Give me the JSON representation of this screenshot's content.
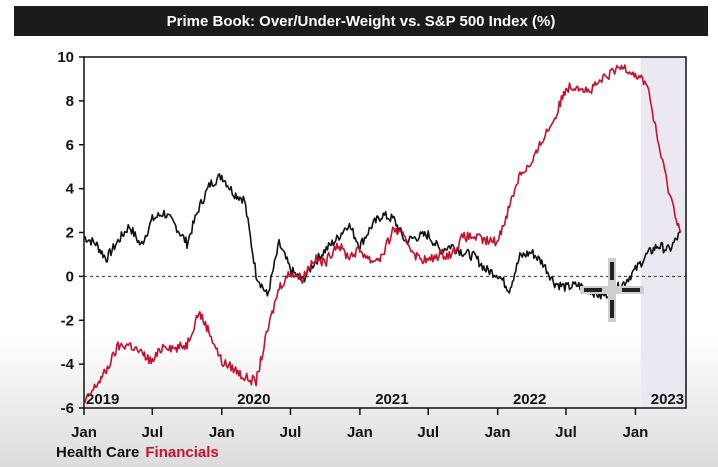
{
  "title": "Prime Book: Over/Under-Weight vs. S&P 500 Index (%)",
  "colors": {
    "health_care": "#111111",
    "financials": "#c8102e",
    "shaded_region": "#ebe8f1",
    "zero_line": "#333333"
  },
  "legend": {
    "health_care": "Health Care",
    "financials": "Financials"
  },
  "chart_data": {
    "type": "line",
    "title": "Prime Book: Over/Under-Weight vs. S&P 500 Index (%)",
    "xlim": [
      "2019-01-01",
      "2023-05-15"
    ],
    "ylim": [
      -6,
      10
    ],
    "yticks": [
      "10",
      "8",
      "6",
      "4",
      "2",
      "0",
      "-2",
      "-4",
      "-6"
    ],
    "xticks": [
      "Jan",
      "Jul",
      "Jan",
      "Jul",
      "Jan",
      "Jul",
      "Jan",
      "Jul",
      "Jan"
    ],
    "year_labels": [
      "2019",
      "2020",
      "2021",
      "2022",
      "2023"
    ],
    "zero_line": "dashed",
    "shaded_from": "2023-01-15",
    "series": [
      {
        "name": "Health Care",
        "x": [
          "2019-01-01",
          "2019-02-01",
          "2019-03-01",
          "2019-04-01",
          "2019-05-01",
          "2019-06-01",
          "2019-07-01",
          "2019-08-01",
          "2019-09-01",
          "2019-10-01",
          "2019-11-01",
          "2019-12-01",
          "2020-01-01",
          "2020-02-01",
          "2020-03-01",
          "2020-04-01",
          "2020-05-01",
          "2020-06-01",
          "2020-07-01",
          "2020-08-01",
          "2020-09-01",
          "2020-10-01",
          "2020-11-01",
          "2020-12-01",
          "2021-01-01",
          "2021-02-01",
          "2021-03-01",
          "2021-04-01",
          "2021-05-01",
          "2021-06-01",
          "2021-07-01",
          "2021-08-01",
          "2021-09-01",
          "2021-10-01",
          "2021-11-01",
          "2021-12-01",
          "2022-01-01",
          "2022-02-01",
          "2022-03-01",
          "2022-04-01",
          "2022-05-01",
          "2022-06-01",
          "2022-07-01",
          "2022-08-01",
          "2022-09-01",
          "2022-10-01",
          "2022-11-01",
          "2022-12-01",
          "2023-01-01",
          "2023-02-01",
          "2023-03-01",
          "2023-04-01",
          "2023-05-01"
        ],
        "values": [
          1.8,
          1.5,
          0.8,
          1.6,
          2.3,
          1.4,
          2.6,
          2.9,
          2.3,
          1.5,
          3.1,
          4.2,
          4.6,
          3.8,
          3.5,
          0.1,
          -0.9,
          1.5,
          0.3,
          -0.2,
          0.6,
          1.2,
          1.7,
          2.4,
          1.4,
          2.3,
          2.8,
          2.6,
          1.6,
          1.8,
          1.9,
          1.2,
          1.4,
          1.1,
          0.9,
          0.3,
          0.1,
          -0.6,
          0.9,
          1.1,
          0.6,
          -0.3,
          -0.5,
          -0.4,
          -0.6,
          -0.9,
          -0.7,
          -0.3,
          0.3,
          1.0,
          1.4,
          1.2,
          2.0
        ]
      },
      {
        "name": "Financials",
        "x": [
          "2019-01-01",
          "2019-02-01",
          "2019-03-01",
          "2019-04-01",
          "2019-05-01",
          "2019-06-01",
          "2019-07-01",
          "2019-08-01",
          "2019-09-01",
          "2019-10-01",
          "2019-11-01",
          "2019-12-01",
          "2020-01-01",
          "2020-02-01",
          "2020-03-01",
          "2020-04-01",
          "2020-05-01",
          "2020-06-01",
          "2020-07-01",
          "2020-08-01",
          "2020-09-01",
          "2020-10-01",
          "2020-11-01",
          "2020-12-01",
          "2021-01-01",
          "2021-02-01",
          "2021-03-01",
          "2021-04-01",
          "2021-05-01",
          "2021-06-01",
          "2021-07-01",
          "2021-08-01",
          "2021-09-01",
          "2021-10-01",
          "2021-11-01",
          "2021-12-01",
          "2022-01-01",
          "2022-02-01",
          "2022-03-01",
          "2022-04-01",
          "2022-05-01",
          "2022-06-01",
          "2022-07-01",
          "2022-08-01",
          "2022-09-01",
          "2022-10-01",
          "2022-11-01",
          "2022-12-01",
          "2023-01-01",
          "2023-02-01",
          "2023-03-01",
          "2023-04-01",
          "2023-05-01"
        ],
        "values": [
          -5.8,
          -5.0,
          -4.3,
          -3.2,
          -3.1,
          -3.5,
          -3.9,
          -3.1,
          -3.3,
          -3.1,
          -1.6,
          -2.6,
          -3.9,
          -4.2,
          -4.6,
          -4.8,
          -2.5,
          -0.5,
          0.2,
          -0.1,
          0.8,
          0.6,
          1.5,
          0.9,
          1.2,
          0.7,
          0.9,
          2.2,
          1.7,
          0.9,
          0.7,
          1.0,
          1.0,
          1.8,
          1.8,
          1.6,
          1.6,
          3.2,
          4.7,
          5.1,
          6.3,
          7.2,
          8.6,
          8.7,
          8.4,
          8.9,
          9.3,
          9.6,
          9.2,
          8.8,
          6.2,
          3.8,
          2.0
        ]
      }
    ]
  }
}
